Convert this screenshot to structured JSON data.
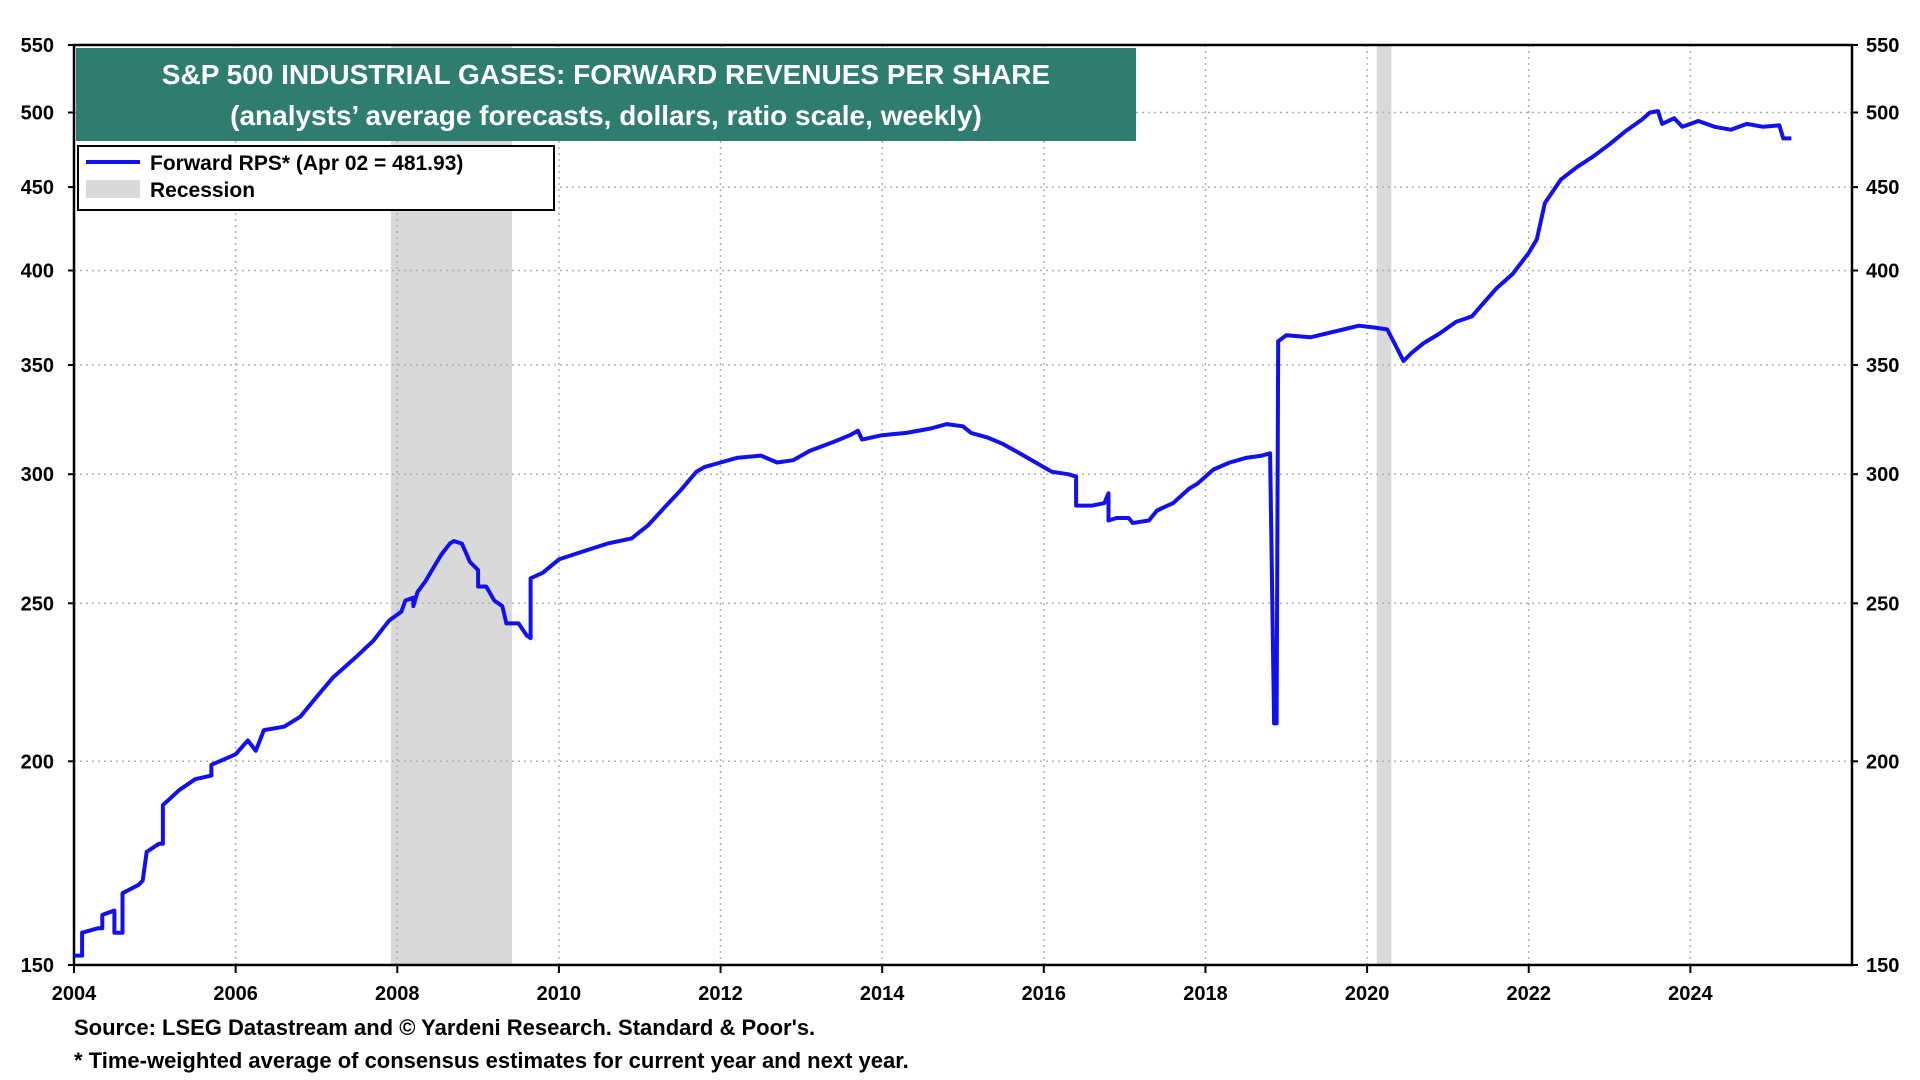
{
  "colors": {
    "series": "#1010f0",
    "recession": "#d9d9d9",
    "title_bg": "#2e7d6f",
    "grid": "#b0b0b0"
  },
  "chart_data": {
    "type": "line",
    "title": "S&P 500 INDUSTRIAL GASES: FORWARD REVENUES PER SHARE",
    "subtitle": "(analysts’ average forecasts, dollars, ratio scale, weekly)",
    "scale": "log",
    "xlim": [
      2004,
      2026
    ],
    "ylim": [
      150,
      550
    ],
    "x_ticks": [
      2004,
      2006,
      2008,
      2010,
      2012,
      2014,
      2016,
      2018,
      2020,
      2022,
      2024
    ],
    "x_tick_labels": [
      "2004",
      "2006",
      "2008",
      "2010",
      "2012",
      "2014",
      "2016",
      "2018",
      "2020",
      "2022",
      "2024"
    ],
    "y_ticks": [
      150,
      200,
      250,
      300,
      350,
      400,
      450,
      500,
      550
    ],
    "y_tick_labels": [
      "150",
      "200",
      "250",
      "300",
      "350",
      "400",
      "450",
      "500",
      "550"
    ],
    "legend": [
      {
        "label": "Forward RPS* (Apr 02 = 481.93)",
        "kind": "line"
      },
      {
        "label": "Recession",
        "kind": "area"
      }
    ],
    "recessions": [
      [
        2007.92,
        2009.42
      ],
      [
        2020.12,
        2020.3
      ]
    ],
    "series": [
      {
        "name": "Forward RPS*",
        "points": [
          [
            2004.0,
            152
          ],
          [
            2004.1,
            152
          ],
          [
            2004.1,
            157
          ],
          [
            2004.3,
            158
          ],
          [
            2004.35,
            158
          ],
          [
            2004.35,
            161
          ],
          [
            2004.5,
            162
          ],
          [
            2004.5,
            157
          ],
          [
            2004.6,
            157
          ],
          [
            2004.6,
            166
          ],
          [
            2004.8,
            168
          ],
          [
            2004.85,
            169
          ],
          [
            2004.9,
            176
          ],
          [
            2005.05,
            178
          ],
          [
            2005.1,
            178
          ],
          [
            2005.1,
            188
          ],
          [
            2005.3,
            192
          ],
          [
            2005.5,
            195
          ],
          [
            2005.7,
            196
          ],
          [
            2005.7,
            199
          ],
          [
            2006.0,
            202
          ],
          [
            2006.15,
            206
          ],
          [
            2006.25,
            203
          ],
          [
            2006.35,
            209
          ],
          [
            2006.6,
            210
          ],
          [
            2006.8,
            213
          ],
          [
            2007.0,
            219
          ],
          [
            2007.2,
            225
          ],
          [
            2007.5,
            232
          ],
          [
            2007.7,
            237
          ],
          [
            2007.9,
            244
          ],
          [
            2008.05,
            247
          ],
          [
            2008.1,
            251
          ],
          [
            2008.2,
            252
          ],
          [
            2008.2,
            249
          ],
          [
            2008.25,
            254
          ],
          [
            2008.35,
            258
          ],
          [
            2008.45,
            263
          ],
          [
            2008.55,
            268
          ],
          [
            2008.65,
            272
          ],
          [
            2008.7,
            273
          ],
          [
            2008.8,
            272
          ],
          [
            2008.9,
            265
          ],
          [
            2009.0,
            262
          ],
          [
            2009.0,
            256
          ],
          [
            2009.1,
            256
          ],
          [
            2009.2,
            251
          ],
          [
            2009.3,
            249
          ],
          [
            2009.35,
            243
          ],
          [
            2009.5,
            243
          ],
          [
            2009.6,
            239
          ],
          [
            2009.65,
            238
          ],
          [
            2009.65,
            259
          ],
          [
            2009.8,
            261
          ],
          [
            2010.0,
            266
          ],
          [
            2010.3,
            269
          ],
          [
            2010.6,
            272
          ],
          [
            2010.9,
            274
          ],
          [
            2011.1,
            279
          ],
          [
            2011.3,
            286
          ],
          [
            2011.5,
            293
          ],
          [
            2011.7,
            301
          ],
          [
            2011.8,
            303
          ],
          [
            2012.0,
            305
          ],
          [
            2012.2,
            307
          ],
          [
            2012.5,
            308
          ],
          [
            2012.7,
            305
          ],
          [
            2012.9,
            306
          ],
          [
            2013.1,
            310
          ],
          [
            2013.4,
            314
          ],
          [
            2013.6,
            317
          ],
          [
            2013.7,
            319
          ],
          [
            2013.75,
            315
          ],
          [
            2014.0,
            317
          ],
          [
            2014.3,
            318
          ],
          [
            2014.6,
            320
          ],
          [
            2014.8,
            322
          ],
          [
            2015.0,
            321
          ],
          [
            2015.1,
            318
          ],
          [
            2015.3,
            316
          ],
          [
            2015.5,
            313
          ],
          [
            2015.7,
            309
          ],
          [
            2015.9,
            305
          ],
          [
            2016.1,
            301
          ],
          [
            2016.3,
            300
          ],
          [
            2016.4,
            299
          ],
          [
            2016.4,
            287
          ],
          [
            2016.6,
            287
          ],
          [
            2016.75,
            288
          ],
          [
            2016.8,
            292
          ],
          [
            2016.8,
            281
          ],
          [
            2016.9,
            282
          ],
          [
            2017.05,
            282
          ],
          [
            2017.1,
            280
          ],
          [
            2017.3,
            281
          ],
          [
            2017.4,
            285
          ],
          [
            2017.6,
            288
          ],
          [
            2017.8,
            294
          ],
          [
            2017.9,
            296
          ],
          [
            2018.1,
            302
          ],
          [
            2018.3,
            305
          ],
          [
            2018.5,
            307
          ],
          [
            2018.7,
            308
          ],
          [
            2018.8,
            309
          ],
          [
            2018.85,
            211
          ],
          [
            2018.88,
            211
          ],
          [
            2018.9,
            362
          ],
          [
            2019.0,
            365
          ],
          [
            2019.3,
            364
          ],
          [
            2019.6,
            367
          ],
          [
            2019.9,
            370
          ],
          [
            2020.1,
            369
          ],
          [
            2020.25,
            368
          ],
          [
            2020.35,
            360
          ],
          [
            2020.45,
            352
          ],
          [
            2020.55,
            356
          ],
          [
            2020.7,
            361
          ],
          [
            2020.9,
            366
          ],
          [
            2021.1,
            372
          ],
          [
            2021.3,
            375
          ],
          [
            2021.4,
            380
          ],
          [
            2021.6,
            390
          ],
          [
            2021.8,
            398
          ],
          [
            2022.0,
            410
          ],
          [
            2022.1,
            418
          ],
          [
            2022.2,
            440
          ],
          [
            2022.4,
            455
          ],
          [
            2022.6,
            463
          ],
          [
            2022.8,
            470
          ],
          [
            2023.0,
            478
          ],
          [
            2023.2,
            487
          ],
          [
            2023.4,
            495
          ],
          [
            2023.5,
            500
          ],
          [
            2023.6,
            501
          ],
          [
            2023.65,
            492
          ],
          [
            2023.8,
            496
          ],
          [
            2023.9,
            490
          ],
          [
            2024.1,
            494
          ],
          [
            2024.3,
            490
          ],
          [
            2024.5,
            488
          ],
          [
            2024.7,
            492
          ],
          [
            2024.9,
            490
          ],
          [
            2025.1,
            491
          ],
          [
            2025.15,
            482
          ],
          [
            2025.25,
            482
          ]
        ]
      }
    ]
  },
  "footer": {
    "source": "Source: LSEG Datastream and © Yardeni Research. Standard & Poor's.",
    "note": "* Time-weighted average of consensus estimates for current year and next year."
  }
}
